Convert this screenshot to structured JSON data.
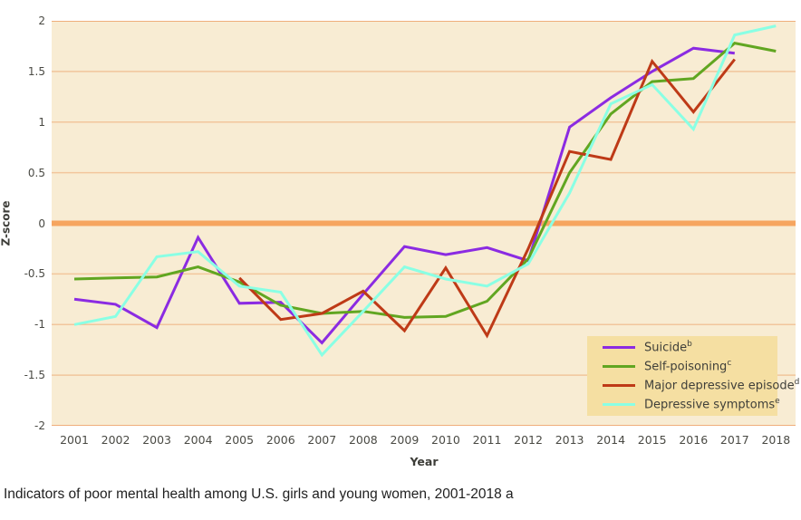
{
  "caption": "Indicators of poor mental health among U.S. girls and young women, 2001-2018 a",
  "chart_data": {
    "type": "line",
    "title": "Indicators of poor mental health among U.S. girls and young women, 2001-2018",
    "xlabel": "Year",
    "ylabel": "Z-score",
    "ylim": [
      -2,
      2
    ],
    "grid": true,
    "legend_position": "bottom-right",
    "plot_bg": "#f8ecd3",
    "grid_color": "#f2c69c",
    "edge_grid_color": "#efae7c",
    "zero_line_color": "#f6a55f",
    "legend_bg": "#f5dfa2",
    "yticks": [
      2,
      1.5,
      1,
      0.5,
      0,
      -0.5,
      -1,
      -1.5,
      -2
    ],
    "x": [
      2001,
      2002,
      2003,
      2004,
      2005,
      2006,
      2007,
      2008,
      2009,
      2010,
      2011,
      2012,
      2013,
      2014,
      2015,
      2016,
      2017,
      2018
    ],
    "series": [
      {
        "name": "Suicide",
        "superscript": "b",
        "color": "#8b2be2",
        "values": [
          -0.75,
          -0.8,
          -1.03,
          -0.14,
          -0.79,
          -0.78,
          -1.18,
          -0.7,
          -0.23,
          -0.31,
          -0.24,
          -0.37,
          0.95,
          1.24,
          1.5,
          1.73,
          1.68,
          null
        ]
      },
      {
        "name": "Self-poisoning",
        "superscript": "c",
        "color": "#61a621",
        "values": [
          -0.55,
          -0.54,
          -0.53,
          -0.43,
          -0.58,
          -0.81,
          -0.89,
          -0.87,
          -0.93,
          -0.92,
          -0.77,
          -0.35,
          0.5,
          1.08,
          1.4,
          1.43,
          1.78,
          1.7
        ]
      },
      {
        "name": "Major depressive episode",
        "superscript": "d",
        "color": "#be3a17",
        "values": [
          null,
          null,
          null,
          null,
          -0.54,
          -0.95,
          -0.89,
          -0.67,
          -1.06,
          -0.44,
          -1.11,
          -0.25,
          0.71,
          0.63,
          1.6,
          1.1,
          1.62,
          null
        ]
      },
      {
        "name": "Depressive symptoms",
        "superscript": "e",
        "color": "#8affe4",
        "values": [
          -1.0,
          -0.92,
          -0.33,
          -0.28,
          -0.62,
          -0.68,
          -1.3,
          -0.87,
          -0.43,
          -0.55,
          -0.62,
          -0.4,
          0.3,
          1.18,
          1.37,
          0.93,
          1.86,
          1.95
        ]
      }
    ]
  }
}
